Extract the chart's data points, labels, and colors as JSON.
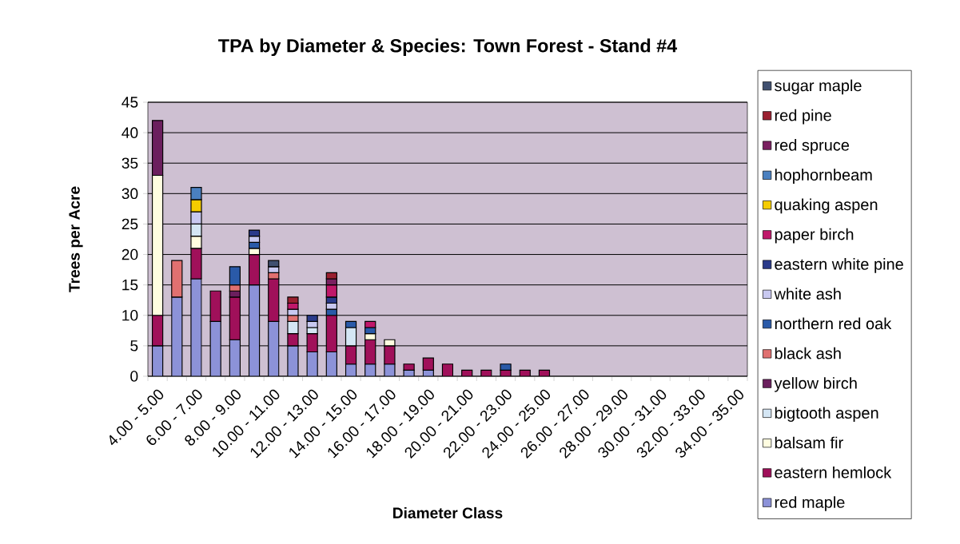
{
  "chart_data": {
    "type": "bar",
    "title": "TPA by Diameter & Species: Town Forest - Stand #4",
    "xlabel": "Diameter Class",
    "ylabel": "Trees per Acre",
    "categories": [
      "4.00 - 5.00",
      null,
      "6.00 - 7.00",
      null,
      "8.00 - 9.00",
      null,
      "10.00 - 11.00",
      null,
      "12.00 - 13.00",
      null,
      "14.00 - 15.00",
      null,
      "16.00 - 17.00",
      null,
      "18.00 - 19.00",
      null,
      "20.00 - 21.00",
      null,
      "22.00 - 23.00",
      null,
      "24.00 - 25.00",
      null,
      "26.00 - 27.00",
      null,
      "28.00 - 29.00",
      null,
      "30.00 - 31.00",
      null,
      "32.00 - 33.00",
      null,
      "34.00 - 35.00"
    ],
    "stacked": true,
    "ylim": [
      0,
      45
    ],
    "yticks": [
      0,
      5,
      10,
      15,
      20,
      25,
      30,
      35,
      40,
      45
    ],
    "grid": "y",
    "legend": "right",
    "series": [
      {
        "name": "red maple",
        "color": "#8c92d8",
        "values": [
          5,
          13,
          16,
          9,
          6,
          15,
          9,
          5,
          4,
          4,
          2,
          2,
          2,
          1,
          1,
          null,
          null,
          null,
          null,
          null,
          null,
          null,
          null,
          null,
          null,
          null,
          null,
          null,
          null,
          null,
          null
        ]
      },
      {
        "name": "eastern hemlock",
        "color": "#a0105a",
        "values": [
          5,
          null,
          5,
          5,
          7,
          5,
          7,
          2,
          3,
          6,
          3,
          4,
          3,
          1,
          2,
          2,
          1,
          1,
          1,
          1,
          1,
          null,
          null,
          null,
          null,
          null,
          null,
          null,
          null,
          null,
          null
        ]
      },
      {
        "name": "balsam fir",
        "color": "#fffde0",
        "values": [
          23,
          null,
          2,
          null,
          null,
          1,
          null,
          null,
          null,
          null,
          null,
          1,
          1,
          null,
          null,
          null,
          null,
          null,
          null,
          null,
          null,
          null,
          null,
          null,
          null,
          null,
          null,
          null,
          null,
          null,
          null
        ]
      },
      {
        "name": "bigtooth aspen",
        "color": "#d4e6f4",
        "values": [
          null,
          null,
          2,
          null,
          null,
          null,
          null,
          2,
          1,
          null,
          3,
          null,
          null,
          null,
          null,
          null,
          null,
          null,
          null,
          null,
          null,
          null,
          null,
          null,
          null,
          null,
          null,
          null,
          null,
          null,
          null
        ]
      },
      {
        "name": "yellow birch",
        "color": "#6b1f5e",
        "values": [
          9,
          null,
          null,
          null,
          1,
          null,
          null,
          null,
          null,
          null,
          null,
          null,
          null,
          null,
          null,
          null,
          null,
          null,
          null,
          null,
          null,
          null,
          null,
          null,
          null,
          null,
          null,
          null,
          null,
          null,
          null
        ]
      },
      {
        "name": "black ash",
        "color": "#e07070",
        "values": [
          null,
          6,
          null,
          null,
          1,
          null,
          1,
          1,
          null,
          null,
          null,
          null,
          null,
          null,
          null,
          null,
          null,
          null,
          null,
          null,
          null,
          null,
          null,
          null,
          null,
          null,
          null,
          null,
          null,
          null,
          null
        ]
      },
      {
        "name": "northern red oak",
        "color": "#2a5aa8",
        "values": [
          null,
          null,
          null,
          null,
          3,
          1,
          null,
          null,
          null,
          1,
          1,
          1,
          null,
          null,
          null,
          null,
          null,
          null,
          1,
          null,
          null,
          null,
          null,
          null,
          null,
          null,
          null,
          null,
          null,
          null,
          null
        ]
      },
      {
        "name": "white ash",
        "color": "#c8c8f0",
        "values": [
          null,
          null,
          2,
          null,
          null,
          1,
          1,
          1,
          1,
          1,
          null,
          null,
          null,
          null,
          null,
          null,
          null,
          null,
          null,
          null,
          null,
          null,
          null,
          null,
          null,
          null,
          null,
          null,
          null,
          null,
          null
        ]
      },
      {
        "name": "eastern white pine",
        "color": "#2a3a8a",
        "values": [
          null,
          null,
          null,
          null,
          null,
          1,
          null,
          null,
          1,
          1,
          null,
          null,
          null,
          null,
          null,
          null,
          null,
          null,
          null,
          null,
          null,
          null,
          null,
          null,
          null,
          null,
          null,
          null,
          null,
          null,
          null
        ]
      },
      {
        "name": "paper birch",
        "color": "#c0186a",
        "values": [
          null,
          null,
          null,
          null,
          null,
          null,
          null,
          1,
          null,
          2,
          null,
          1,
          null,
          null,
          null,
          null,
          null,
          null,
          null,
          null,
          null,
          null,
          null,
          null,
          null,
          null,
          null,
          null,
          null,
          null,
          null
        ]
      },
      {
        "name": "quaking aspen",
        "color": "#f5cc00",
        "values": [
          null,
          null,
          2,
          null,
          null,
          null,
          null,
          null,
          null,
          null,
          null,
          null,
          null,
          null,
          null,
          null,
          null,
          null,
          null,
          null,
          null,
          null,
          null,
          null,
          null,
          null,
          null,
          null,
          null,
          null,
          null
        ]
      },
      {
        "name": "hophornbeam",
        "color": "#4a80c0",
        "values": [
          null,
          null,
          2,
          null,
          null,
          null,
          null,
          null,
          null,
          null,
          null,
          null,
          null,
          null,
          null,
          null,
          null,
          null,
          null,
          null,
          null,
          null,
          null,
          null,
          null,
          null,
          null,
          null,
          null,
          null,
          null
        ]
      },
      {
        "name": "red spruce",
        "color": "#7a2060",
        "values": [
          null,
          null,
          null,
          null,
          null,
          null,
          null,
          null,
          null,
          1,
          null,
          null,
          null,
          null,
          null,
          null,
          null,
          null,
          null,
          null,
          null,
          null,
          null,
          null,
          null,
          null,
          null,
          null,
          null,
          null,
          null
        ]
      },
      {
        "name": "red pine",
        "color": "#9a2030",
        "values": [
          null,
          null,
          null,
          null,
          null,
          null,
          null,
          1,
          null,
          1,
          null,
          null,
          null,
          null,
          null,
          null,
          null,
          null,
          null,
          null,
          null,
          null,
          null,
          null,
          null,
          null,
          null,
          null,
          null,
          null,
          null
        ]
      },
      {
        "name": "sugar maple",
        "color": "#405070",
        "values": [
          null,
          null,
          null,
          null,
          null,
          null,
          1,
          null,
          null,
          null,
          null,
          null,
          null,
          null,
          null,
          null,
          null,
          null,
          null,
          null,
          null,
          null,
          null,
          null,
          null,
          null,
          null,
          null,
          null,
          null,
          null
        ]
      }
    ]
  }
}
